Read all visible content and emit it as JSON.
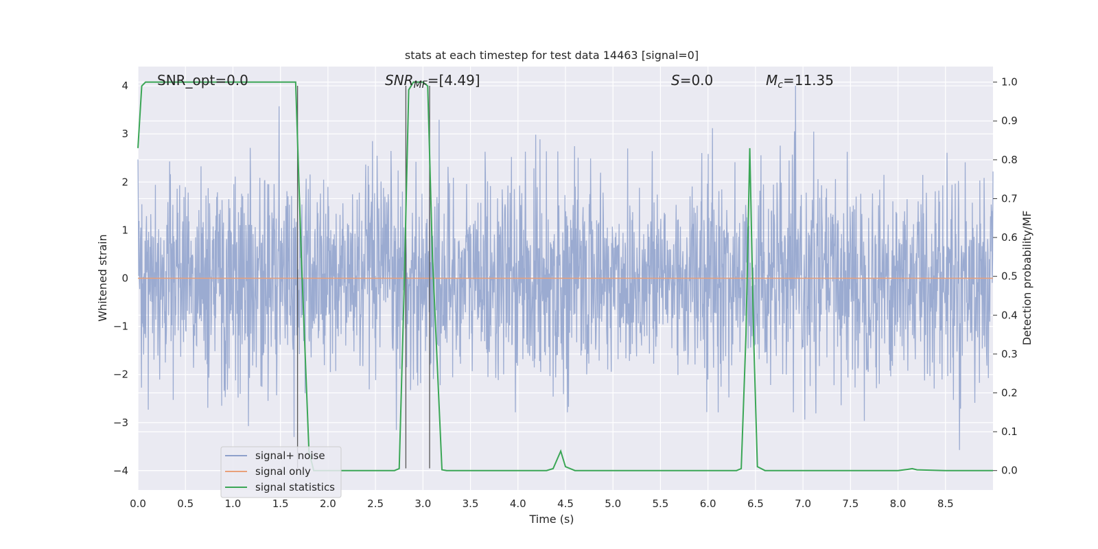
{
  "chart_data": {
    "type": "line",
    "title": "stats at each timestep for test data 14463 [signal=0]",
    "xlabel": "Time (s)",
    "ylabel_left": "Whitened strain",
    "ylabel_right": "Detection probability/MF",
    "xlim": [
      0.0,
      9.0
    ],
    "ylim_left": [
      -4.4,
      4.4
    ],
    "ylim_right": [
      -0.05,
      1.04
    ],
    "x_ticks": [
      "0.0",
      "0.5",
      "1.0",
      "1.5",
      "2.0",
      "2.5",
      "3.0",
      "3.5",
      "4.0",
      "4.5",
      "5.0",
      "5.5",
      "6.0",
      "6.5",
      "7.0",
      "7.5",
      "8.0",
      "8.5"
    ],
    "y_ticks_left": [
      "4",
      "3",
      "2",
      "1",
      "0",
      "−1",
      "−2",
      "−3",
      "−4"
    ],
    "y_ticks_right": [
      "1.0",
      "0.9",
      "0.8",
      "0.7",
      "0.6",
      "0.5",
      "0.4",
      "0.3",
      "0.2",
      "0.1",
      "0.0"
    ],
    "grid": true,
    "legend_placement": "lower-left",
    "legend": [
      "signal+ noise",
      "signal only",
      "signal statistics"
    ],
    "annotations": {
      "snr_opt": "SNR_opt=0.0",
      "snr_mf_main": "SNR",
      "snr_mf_sub": "MF",
      "snr_mf_value": "=[4.49]",
      "s_main": "S",
      "s_value": "=0.0",
      "mc_main": "M",
      "mc_sub": "c",
      "mc_value": "=11.35"
    },
    "series": [
      {
        "name": "signal+ noise",
        "axis": "left",
        "color": "#8da0cb",
        "description_values": "whitened noise, typical envelope ±1.6, extremes up to about 4.0 and down to -3.9",
        "x_range": [
          0.0,
          9.0
        ]
      },
      {
        "name": "signal only",
        "axis": "left",
        "color": "#e8a07a",
        "x": [
          0.0,
          9.0
        ],
        "values": [
          0.0,
          0.0
        ]
      },
      {
        "name": "signal statistics",
        "axis": "right",
        "color": "#3aa655",
        "x": [
          0.0,
          0.04,
          0.08,
          0.12,
          1.6,
          1.66,
          1.72,
          1.8,
          1.85,
          2.0,
          2.5,
          2.7,
          2.75,
          2.8,
          2.85,
          2.9,
          3.0,
          3.05,
          3.1,
          3.2,
          3.25,
          3.5,
          4.0,
          4.3,
          4.37,
          4.45,
          4.5,
          4.6,
          5.0,
          5.5,
          6.0,
          6.3,
          6.35,
          6.4,
          6.44,
          6.48,
          6.52,
          6.6,
          7.0,
          7.5,
          8.0,
          8.1,
          8.15,
          8.2,
          8.5,
          9.0
        ],
        "values": [
          0.83,
          0.99,
          1.0,
          1.0,
          1.0,
          1.0,
          0.55,
          0.05,
          0.0,
          0.0,
          0.0,
          0.0,
          0.005,
          0.45,
          0.98,
          1.0,
          1.0,
          0.99,
          0.55,
          0.002,
          0.0,
          0.0,
          0.0,
          0.0,
          0.005,
          0.05,
          0.01,
          0.0,
          0.0,
          0.0,
          0.0,
          0.0,
          0.005,
          0.35,
          0.83,
          0.35,
          0.01,
          0.0,
          0.0,
          0.0,
          0.0,
          0.003,
          0.005,
          0.002,
          0.0,
          0.0
        ]
      }
    ],
    "markers": {
      "color": "#555555",
      "x": [
        1.68,
        2.82,
        3.07
      ],
      "y_top": [
        4.0,
        4.0,
        4.0
      ],
      "y_bottom": [
        -3.95,
        -3.95,
        -3.95
      ]
    }
  }
}
